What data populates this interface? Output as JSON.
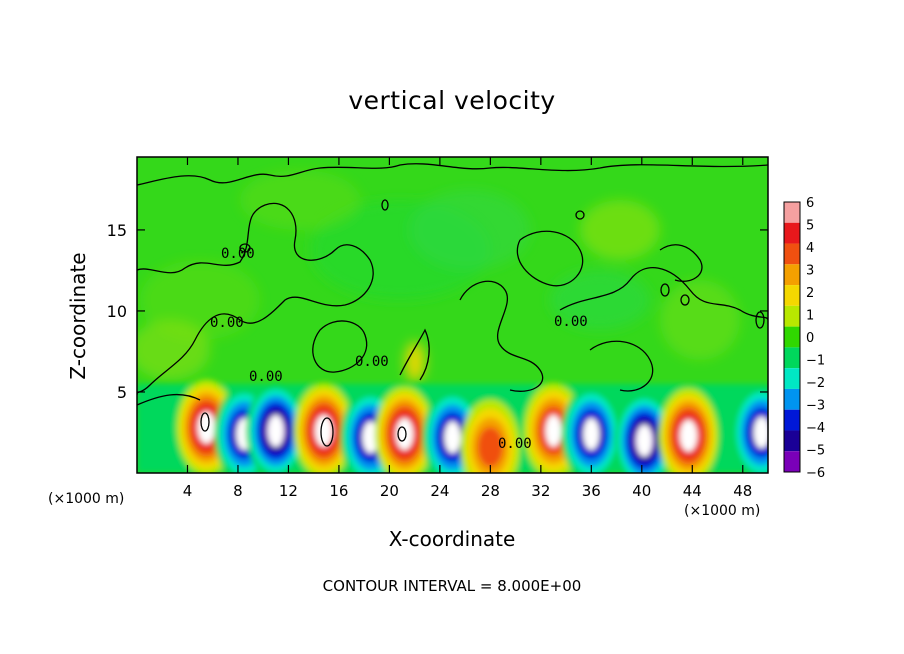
{
  "chart_data": {
    "type": "heatmap",
    "title": "vertical velocity",
    "xlabel": "X-coordinate",
    "ylabel": "Z-coordinate",
    "x_units_left": "(×1000 m)",
    "x_units_right": "(×1000 m)",
    "xlim": [
      0,
      50
    ],
    "ylim": [
      0,
      19.5
    ],
    "x_ticks": [
      4,
      8,
      12,
      16,
      20,
      24,
      28,
      32,
      36,
      40,
      44,
      48
    ],
    "y_ticks": [
      5,
      10,
      15
    ],
    "colorbar": {
      "range": [
        -6,
        6
      ],
      "ticks": [
        6,
        5,
        4,
        3,
        2,
        1,
        0,
        -1,
        -2,
        -3,
        -4,
        -5,
        -6
      ],
      "colors": [
        "#f5a0a0",
        "#e8181c",
        "#f05010",
        "#f4a000",
        "#f4d800",
        "#b8e800",
        "#30d800",
        "#00d85c",
        "#00e8c4",
        "#0094f0",
        "#0018d8",
        "#1a0096",
        "#7a00b8"
      ]
    },
    "contour_label": "0.00",
    "footer": "CONTOUR INTERVAL = 8.000E+00",
    "features": [
      {
        "x": 5.5,
        "z": 2.8,
        "w": 6,
        "kind": "updraft"
      },
      {
        "x": 8.5,
        "z": 2.4,
        "w": -5,
        "kind": "downdraft"
      },
      {
        "x": 11.0,
        "z": 2.6,
        "w": -6,
        "kind": "downdraft"
      },
      {
        "x": 14.8,
        "z": 2.6,
        "w": 6,
        "kind": "updraft"
      },
      {
        "x": 18.5,
        "z": 2.2,
        "w": -5,
        "kind": "downdraft"
      },
      {
        "x": 21.2,
        "z": 2.4,
        "w": 6,
        "kind": "updraft"
      },
      {
        "x": 25.0,
        "z": 2.2,
        "w": -5,
        "kind": "downdraft"
      },
      {
        "x": 28.0,
        "z": 1.6,
        "w": 4,
        "kind": "updraft"
      },
      {
        "x": 33.0,
        "z": 2.6,
        "w": 5,
        "kind": "updraft"
      },
      {
        "x": 36.0,
        "z": 2.4,
        "w": -5,
        "kind": "downdraft"
      },
      {
        "x": 40.2,
        "z": 2.0,
        "w": -6,
        "kind": "downdraft"
      },
      {
        "x": 43.7,
        "z": 2.3,
        "w": 6,
        "kind": "updraft"
      },
      {
        "x": 49.5,
        "z": 2.5,
        "w": -5,
        "kind": "downdraft"
      }
    ]
  }
}
